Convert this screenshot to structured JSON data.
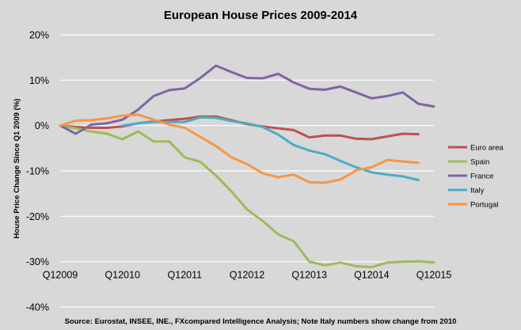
{
  "chart_data": {
    "type": "line",
    "title": "European House Prices 2009-2014",
    "ylabel": "House Price Change Since Q1 2009 (%)",
    "xlabel": "",
    "source_note": "Source: Eurostat, INSEE, INE., FXcompared Intelligence Analysis; Note Italy numbers show change from 2010",
    "ylim": [
      -40,
      20
    ],
    "yticks": [
      20,
      10,
      0,
      -10,
      -20,
      -30,
      -40
    ],
    "ytick_labels": [
      "20%",
      "10%",
      "0%",
      "-10%",
      "-20%",
      "-30%",
      "-40%"
    ],
    "xlim": [
      2009.0,
      2015.0
    ],
    "xticks": [
      2009.0,
      2010.0,
      2011.0,
      2012.0,
      2013.0,
      2014.0,
      2015.0
    ],
    "xtick_labels": [
      "Q12009",
      "Q12010",
      "Q12011",
      "Q12012",
      "Q12013",
      "Q12014",
      "Q12015"
    ],
    "grid": "horizontal",
    "legend_position": "right",
    "series": [
      {
        "name": "Euro area",
        "color": "#c0504d",
        "x": [
          2009.0,
          2009.25,
          2009.5,
          2009.75,
          2010.0,
          2010.25,
          2010.5,
          2010.75,
          2011.0,
          2011.25,
          2011.5,
          2011.75,
          2012.0,
          2012.25,
          2012.5,
          2012.75,
          2013.0,
          2013.25,
          2013.5,
          2013.75,
          2014.0,
          2014.25,
          2014.5,
          2014.75
        ],
        "y": [
          0,
          -0.3,
          -0.5,
          -0.5,
          -0.2,
          0.5,
          0.9,
          1.2,
          1.5,
          2.0,
          2.0,
          1.2,
          0.3,
          -0.2,
          -0.6,
          -1.0,
          -2.6,
          -2.2,
          -2.2,
          -2.9,
          -3.0,
          -2.4,
          -1.8,
          -1.9
        ]
      },
      {
        "name": "Spain",
        "color": "#9bbb59",
        "x": [
          2009.0,
          2009.25,
          2009.5,
          2009.75,
          2010.0,
          2010.25,
          2010.5,
          2010.75,
          2011.0,
          2011.25,
          2011.5,
          2011.75,
          2012.0,
          2012.25,
          2012.5,
          2012.75,
          2013.0,
          2013.25,
          2013.5,
          2013.75,
          2014.0,
          2014.25,
          2014.5,
          2014.75,
          2015.0
        ],
        "y": [
          0,
          -0.6,
          -1.3,
          -1.8,
          -3.0,
          -1.3,
          -3.5,
          -3.5,
          -7.0,
          -8.0,
          -11.0,
          -14.5,
          -18.5,
          -21.0,
          -24.0,
          -25.5,
          -30.0,
          -30.8,
          -30.2,
          -31.0,
          -31.2,
          -30.2,
          -30.0,
          -29.9,
          -30.2
        ]
      },
      {
        "name": "France",
        "color": "#8064a2",
        "x": [
          2009.0,
          2009.25,
          2009.5,
          2009.75,
          2010.0,
          2010.25,
          2010.5,
          2010.75,
          2011.0,
          2011.25,
          2011.5,
          2011.75,
          2012.0,
          2012.25,
          2012.5,
          2012.75,
          2013.0,
          2013.25,
          2013.5,
          2013.75,
          2014.0,
          2014.25,
          2014.5,
          2014.75,
          2015.0
        ],
        "y": [
          0,
          -1.8,
          0.2,
          0.5,
          1.3,
          3.5,
          6.5,
          7.8,
          8.2,
          10.5,
          13.2,
          11.8,
          10.5,
          10.4,
          11.4,
          9.5,
          8.1,
          7.9,
          8.6,
          7.3,
          6.0,
          6.5,
          7.3,
          4.8,
          4.2
        ]
      },
      {
        "name": "Italy",
        "color": "#4bacc6",
        "x": [
          2010.0,
          2010.25,
          2010.5,
          2010.75,
          2011.0,
          2011.25,
          2011.5,
          2011.75,
          2012.0,
          2012.25,
          2012.5,
          2012.75,
          2013.0,
          2013.25,
          2013.5,
          2013.75,
          2014.0,
          2014.25,
          2014.5,
          2014.75
        ],
        "y": [
          0,
          0.5,
          0.8,
          0.8,
          0.8,
          1.8,
          1.7,
          1.0,
          0.5,
          -0.3,
          -2.0,
          -4.3,
          -5.5,
          -6.3,
          -7.8,
          -9.2,
          -10.3,
          -10.8,
          -11.2,
          -12.0
        ]
      },
      {
        "name": "Portugal",
        "color": "#f79646",
        "x": [
          2009.0,
          2009.25,
          2009.5,
          2009.75,
          2010.0,
          2010.25,
          2010.5,
          2010.75,
          2011.0,
          2011.25,
          2011.5,
          2011.75,
          2012.0,
          2012.25,
          2012.5,
          2012.75,
          2013.0,
          2013.25,
          2013.5,
          2013.75,
          2014.0,
          2014.25,
          2014.5,
          2014.75
        ],
        "y": [
          0,
          1.1,
          1.2,
          1.6,
          2.2,
          2.4,
          1.3,
          0.2,
          -0.5,
          -2.5,
          -4.5,
          -7.0,
          -8.5,
          -10.5,
          -11.4,
          -10.8,
          -12.5,
          -12.6,
          -11.9,
          -9.9,
          -9.2,
          -7.6,
          -7.9,
          -8.2
        ]
      }
    ]
  }
}
